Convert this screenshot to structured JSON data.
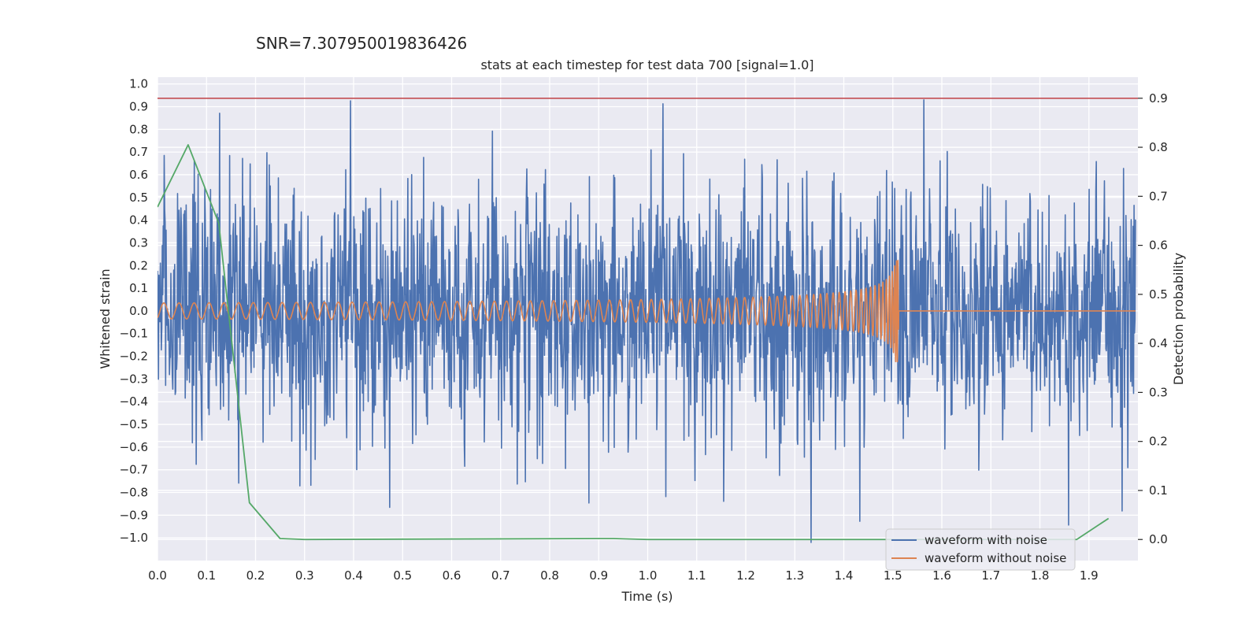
{
  "header": {
    "snr_text": "SNR=7.307950019836426"
  },
  "chart_data": {
    "type": "line",
    "title": "stats at each timestep for test data 700 [signal=1.0]",
    "xlabel": "Time (s)",
    "ylabel": "Whitened strain",
    "y2label": "Detection probability",
    "xlim": [
      0.0,
      2.0
    ],
    "ylim": [
      -1.1,
      1.03
    ],
    "y2lim": [
      -0.043,
      0.943
    ],
    "x_ticks": [
      0.0,
      0.1,
      0.2,
      0.3,
      0.4,
      0.5,
      0.6,
      0.7,
      0.8,
      0.9,
      1.0,
      1.1,
      1.2,
      1.3,
      1.4,
      1.5,
      1.6,
      1.7,
      1.8,
      1.9
    ],
    "x_tick_labels": [
      "0.0",
      "0.1",
      "0.2",
      "0.3",
      "0.4",
      "0.5",
      "0.6",
      "0.7",
      "0.8",
      "0.9",
      "1.0",
      "1.1",
      "1.2",
      "1.3",
      "1.4",
      "1.5",
      "1.6",
      "1.7",
      "1.8",
      "1.9"
    ],
    "y_ticks": [
      1.0,
      0.9,
      0.8,
      0.7,
      0.6,
      0.5,
      0.4,
      0.3,
      0.2,
      0.1,
      0.0,
      -0.1,
      -0.2,
      -0.3,
      -0.4,
      -0.5,
      -0.6,
      -0.7,
      -0.8,
      -0.9,
      -1.0
    ],
    "y_tick_labels": [
      "1.0",
      "0.9",
      "0.8",
      "0.7",
      "0.6",
      "0.5",
      "0.4",
      "0.3",
      "0.2",
      "0.1",
      "0.0",
      "−0.1",
      "−0.2",
      "−0.3",
      "−0.4",
      "−0.5",
      "−0.6",
      "−0.7",
      "−0.8",
      "−0.9",
      "−1.0"
    ],
    "y2_ticks": [
      0.9,
      0.8,
      0.7,
      0.6,
      0.5,
      0.4,
      0.3,
      0.2,
      0.1,
      0.0
    ],
    "y2_tick_labels": [
      "0.9",
      "0.8",
      "0.7",
      "0.6",
      "0.5",
      "0.4",
      "0.3",
      "0.2",
      "0.1",
      "0.0"
    ],
    "threshold": {
      "value": 0.9,
      "axis": "right",
      "color": "#c44e52"
    },
    "series": [
      {
        "name": "waveform with noise",
        "color": "#4c72b0",
        "axis": "left",
        "generated": true,
        "samples": 2048,
        "t_start": 0.0,
        "t_end": 1.995,
        "amplitude_std": 0.27,
        "approx_range": [
          -1.02,
          0.93
        ]
      },
      {
        "name": "waveform without noise",
        "color": "#dd8452",
        "axis": "left",
        "generated": true,
        "t_merger": 1.512,
        "t_end": 1.995,
        "freq_start_hz": 32,
        "freq_end_hz": 260,
        "amp_start": 0.035,
        "amp_end": 0.28
      },
      {
        "name": "detection probability",
        "color": "#55a868",
        "axis": "right",
        "x": [
          0.0,
          0.0625,
          0.125,
          0.1875,
          0.25,
          0.3,
          0.93,
          1.0,
          1.5,
          1.875,
          1.94
        ],
        "values": [
          0.678,
          0.805,
          0.645,
          0.075,
          0.002,
          0.0,
          0.002,
          0.0,
          0.0,
          0.0,
          0.043
        ]
      }
    ],
    "legend": {
      "location": "lower-right",
      "entries": [
        "waveform with noise",
        "waveform without noise"
      ]
    }
  }
}
